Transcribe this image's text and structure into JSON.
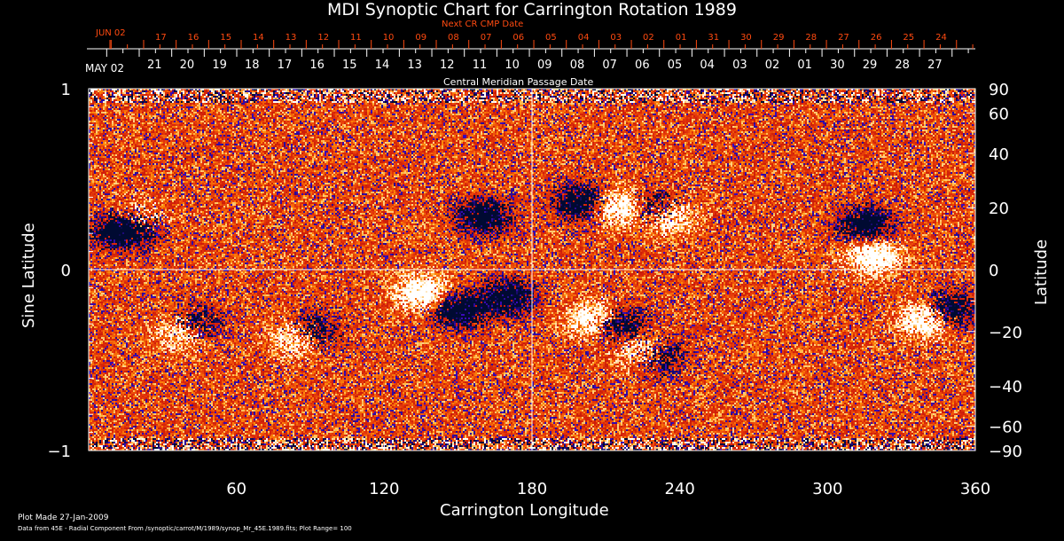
{
  "title": "MDI Synoptic Chart for Carrington Rotation 1989",
  "top_axis": {
    "next_label": "Next CR CMP Date",
    "next_start": "JUN 02",
    "next_dates": [
      "17",
      "16",
      "15",
      "14",
      "13",
      "12",
      "11",
      "10",
      "09",
      "08",
      "07",
      "06",
      "05",
      "04",
      "03",
      "02",
      "01",
      "31",
      "30",
      "29",
      "28",
      "27",
      "26",
      "25",
      "24"
    ],
    "cmp_start": "MAY 02",
    "cmp_dates": [
      "21",
      "20",
      "19",
      "18",
      "17",
      "16",
      "15",
      "14",
      "13",
      "12",
      "11",
      "10",
      "09",
      "08",
      "07",
      "06",
      "05",
      "04",
      "03",
      "02",
      "01",
      "30",
      "29",
      "28",
      "27"
    ],
    "cmp_label": "Central Meridian Passage Date"
  },
  "chart_data": {
    "type": "heatmap",
    "title": "MDI Synoptic Chart for Carrington Rotation 1989",
    "xlabel": "Carrington Longitude",
    "ylabel_left": "Sine Latitude",
    "ylabel_right": "Latitude",
    "xlim": [
      0,
      360
    ],
    "ylim": [
      -1,
      1
    ],
    "x_ticks": [
      "60",
      "120",
      "180",
      "240",
      "300",
      "360"
    ],
    "y_ticks_left": [
      "1",
      "0",
      "−1"
    ],
    "y_ticks_right": [
      "90",
      "60",
      "40",
      "20",
      "0",
      "−20",
      "−40",
      "−60",
      "−90"
    ],
    "colorscale": {
      "negative": "#000060",
      "zero": "#e83c10",
      "positive": "#ffffff"
    },
    "plot_range": 100
  },
  "footer": {
    "plot_made": "Plot Made 27-Jan-2009",
    "data_from": "Data from 45E - Radial Component From /synoptic/carrot/M/1989/synop_Mr_45E.1989.fits; Plot Range=  100"
  }
}
